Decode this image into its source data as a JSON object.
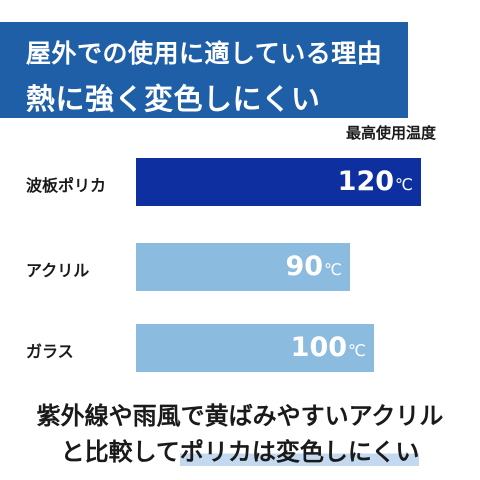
{
  "banner": {
    "line1": "屋外での使用に適している理由",
    "line2": "熱に強く変色しにくい"
  },
  "chart_data": {
    "type": "bar",
    "orientation": "horizontal",
    "title": "",
    "legend_label": "最高使用温度",
    "unit": "℃",
    "categories": [
      "波板ポリカ",
      "アクリル",
      "ガラス"
    ],
    "values": [
      120,
      90,
      100
    ],
    "value_labels": [
      "120",
      "90",
      "100"
    ],
    "colors": [
      "#0d2f9f",
      "#8cbbe0",
      "#8cbbe0"
    ],
    "xlim": [
      0,
      120
    ],
    "grid": false
  },
  "caption": {
    "line1": "紫外線や雨風で黄ばみやすいアクリル",
    "line2_plain": "と比較して",
    "line2_highlight": "ポリカは変色しにくい"
  }
}
